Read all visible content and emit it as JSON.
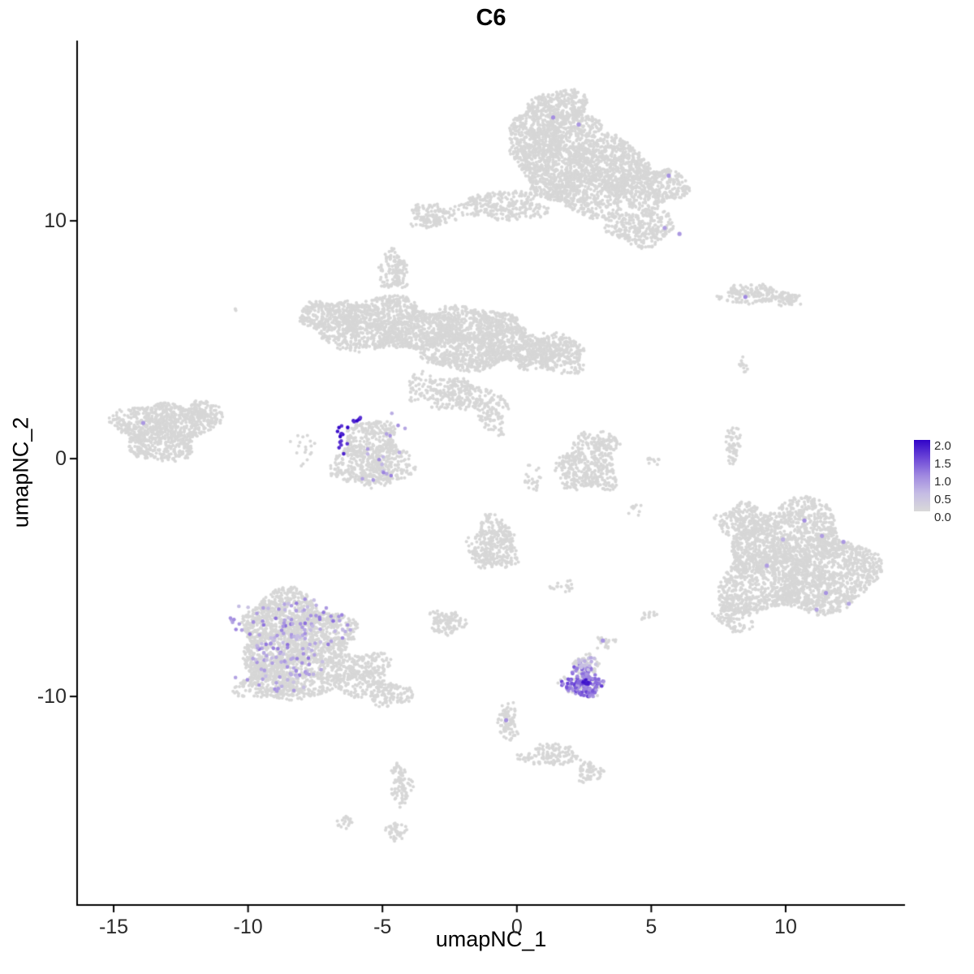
{
  "chart_data": {
    "type": "scatter",
    "title": "C6",
    "xlabel": "umapNC_1",
    "ylabel": "umapNC_2",
    "xlim": [
      -16.36,
      14.44
    ],
    "ylim": [
      -18.77,
      17.58
    ],
    "grid": false,
    "legend_position": "right",
    "x_ticks": [
      {
        "v": -15,
        "label": "-15"
      },
      {
        "v": -10,
        "label": "-10"
      },
      {
        "v": -5,
        "label": "-5"
      },
      {
        "v": 0,
        "label": "0"
      },
      {
        "v": 5,
        "label": "5"
      },
      {
        "v": 10,
        "label": "10"
      }
    ],
    "y_ticks": [
      {
        "v": 10,
        "label": "10"
      },
      {
        "v": 0,
        "label": "0"
      },
      {
        "v": -10,
        "label": "-10"
      }
    ],
    "legend": {
      "ticks": [
        "2.0",
        "1.5",
        "1.0",
        "0.5",
        "0.0"
      ],
      "vmin": 0.0,
      "vmax": 2.0
    },
    "colors": {
      "base_point": "#d7d7d7",
      "axis": "#000000",
      "tick_text": "#2b2b2b"
    },
    "color_stops": [
      {
        "v": 0.0,
        "c": "#d9d9d9"
      },
      {
        "v": 0.5,
        "c": "#c5bce4"
      },
      {
        "v": 1.0,
        "c": "#a089e0"
      },
      {
        "v": 1.5,
        "c": "#6b45d7"
      },
      {
        "v": 2.0,
        "c": "#3104c8"
      }
    ],
    "gray_clusters": [
      {
        "cx": 1.5,
        "cy": 14.3,
        "rx": 1.5,
        "ry": 1.1,
        "n": 700
      },
      {
        "cx": 2.5,
        "cy": 12.0,
        "rx": 2.3,
        "ry": 1.6,
        "n": 1600
      },
      {
        "cx": 0.7,
        "cy": 13.1,
        "rx": 1.0,
        "ry": 1.0,
        "n": 300
      },
      {
        "cx": 4.9,
        "cy": 11.4,
        "rx": 1.4,
        "ry": 0.9,
        "n": 450
      },
      {
        "cx": 4.6,
        "cy": 9.7,
        "rx": 1.3,
        "ry": 0.7,
        "n": 300
      },
      {
        "cx": -0.6,
        "cy": 10.6,
        "rx": 1.7,
        "ry": 0.6,
        "n": 280
      },
      {
        "cx": -3.2,
        "cy": 10.2,
        "rx": 0.8,
        "ry": 0.5,
        "n": 130
      },
      {
        "cx": -4.6,
        "cy": 5.6,
        "rx": 2.2,
        "ry": 1.1,
        "n": 1100
      },
      {
        "cx": -1.4,
        "cy": 5.0,
        "rx": 2.2,
        "ry": 1.3,
        "n": 1300
      },
      {
        "cx": 1.2,
        "cy": 4.4,
        "rx": 1.4,
        "ry": 0.8,
        "n": 420
      },
      {
        "cx": -6.9,
        "cy": 5.9,
        "rx": 1.1,
        "ry": 0.8,
        "n": 350
      },
      {
        "cx": -4.6,
        "cy": 7.9,
        "rx": 0.55,
        "ry": 0.8,
        "n": 140
      },
      {
        "cx": -2.2,
        "cy": 2.7,
        "rx": 1.1,
        "ry": 0.7,
        "n": 220
      },
      {
        "cx": -0.9,
        "cy": 1.9,
        "rx": 0.6,
        "ry": 0.8,
        "n": 110
      },
      {
        "cx": -13.2,
        "cy": 1.2,
        "rx": 1.7,
        "ry": 1.2,
        "n": 900
      },
      {
        "cx": -11.7,
        "cy": 1.9,
        "rx": 0.8,
        "ry": 0.5,
        "n": 130
      },
      {
        "cx": -5.4,
        "cy": 0.1,
        "rx": 1.4,
        "ry": 1.4,
        "n": 650
      },
      {
        "cx": -8.0,
        "cy": 0.4,
        "rx": 0.5,
        "ry": 0.8,
        "n": 18
      },
      {
        "cx": 2.6,
        "cy": -0.3,
        "rx": 1.1,
        "ry": 1.1,
        "n": 380
      },
      {
        "cx": 3.3,
        "cy": 0.7,
        "rx": 0.5,
        "ry": 0.4,
        "n": 70
      },
      {
        "cx": 10.4,
        "cy": -4.4,
        "rx": 2.8,
        "ry": 2.3,
        "n": 2600
      },
      {
        "cx": 8.4,
        "cy": -2.6,
        "rx": 0.9,
        "ry": 0.7,
        "n": 200
      },
      {
        "cx": 8.1,
        "cy": -6.5,
        "rx": 0.7,
        "ry": 0.8,
        "n": 150
      },
      {
        "cx": -8.3,
        "cy": -7.3,
        "rx": 2.1,
        "ry": 1.6,
        "n": 1500
      },
      {
        "cx": -8.6,
        "cy": -9.3,
        "rx": 1.8,
        "ry": 0.9,
        "n": 600
      },
      {
        "cx": -6.0,
        "cy": -9.0,
        "rx": 1.3,
        "ry": 0.9,
        "n": 350
      },
      {
        "cx": -4.7,
        "cy": -9.9,
        "rx": 0.8,
        "ry": 0.5,
        "n": 120
      },
      {
        "cx": -0.9,
        "cy": -3.6,
        "rx": 0.9,
        "ry": 1.1,
        "n": 330
      },
      {
        "cx": -2.6,
        "cy": -6.9,
        "rx": 0.65,
        "ry": 0.5,
        "n": 110
      },
      {
        "cx": 2.6,
        "cy": -8.7,
        "rx": 0.5,
        "ry": 0.45,
        "n": 80
      },
      {
        "cx": -0.35,
        "cy": -11.1,
        "rx": 0.35,
        "ry": 0.8,
        "n": 90
      },
      {
        "cx": 1.3,
        "cy": -12.5,
        "rx": 1.1,
        "ry": 0.45,
        "n": 130
      },
      {
        "cx": 2.7,
        "cy": -13.2,
        "rx": 0.5,
        "ry": 0.4,
        "n": 60
      },
      {
        "cx": -4.3,
        "cy": -13.7,
        "rx": 0.4,
        "ry": 0.9,
        "n": 90
      },
      {
        "cx": -4.5,
        "cy": -15.7,
        "rx": 0.35,
        "ry": 0.4,
        "n": 40
      },
      {
        "cx": -6.4,
        "cy": -15.3,
        "rx": 0.3,
        "ry": 0.25,
        "n": 20
      },
      {
        "cx": 8.8,
        "cy": 6.9,
        "rx": 1.3,
        "ry": 0.4,
        "n": 170
      },
      {
        "cx": 10.1,
        "cy": 6.7,
        "rx": 0.5,
        "ry": 0.3,
        "n": 50
      },
      {
        "cx": 8.0,
        "cy": 0.6,
        "rx": 0.3,
        "ry": 0.9,
        "n": 60
      },
      {
        "cx": 8.45,
        "cy": 3.9,
        "rx": 0.2,
        "ry": 0.4,
        "n": 12
      },
      {
        "cx": 4.9,
        "cy": -6.6,
        "rx": 0.3,
        "ry": 0.25,
        "n": 14
      },
      {
        "cx": 3.3,
        "cy": -7.7,
        "rx": 0.35,
        "ry": 0.3,
        "n": 22
      },
      {
        "cx": 1.7,
        "cy": -5.4,
        "rx": 0.45,
        "ry": 0.3,
        "n": 18
      },
      {
        "cx": 4.4,
        "cy": -2.2,
        "rx": 0.3,
        "ry": 0.3,
        "n": 10
      },
      {
        "cx": 5.1,
        "cy": -0.1,
        "rx": 0.3,
        "ry": 0.25,
        "n": 10
      },
      {
        "cx": 0.6,
        "cy": -0.9,
        "rx": 0.3,
        "ry": 0.7,
        "n": 25
      },
      {
        "cx": -3.5,
        "cy": 3.0,
        "rx": 0.6,
        "ry": 0.6,
        "n": 60
      },
      {
        "cx": -10.4,
        "cy": 6.3,
        "rx": 0.15,
        "ry": 0.15,
        "n": 3
      },
      {
        "cx": 2.45,
        "cy": -9.5,
        "rx": 0.8,
        "ry": 0.5,
        "n": 60
      }
    ],
    "expression_regions": [
      {
        "cx": -8.4,
        "cy": -7.4,
        "rx": 2.0,
        "ry": 1.6,
        "n": 130,
        "vmin": 0.4,
        "vmax": 1.2
      },
      {
        "cx": -8.7,
        "cy": -9.2,
        "rx": 1.6,
        "ry": 0.8,
        "n": 30,
        "vmin": 0.4,
        "vmax": 1.0
      },
      {
        "cx": 2.45,
        "cy": -9.55,
        "rx": 0.75,
        "ry": 0.4,
        "n": 110,
        "vmin": 0.8,
        "vmax": 1.6
      },
      {
        "cx": 2.5,
        "cy": -9.0,
        "rx": 0.45,
        "ry": 0.35,
        "n": 45,
        "vmin": 0.7,
        "vmax": 1.4
      },
      {
        "cx": 2.6,
        "cy": -9.4,
        "rx": 0.25,
        "ry": 0.15,
        "n": 5,
        "vmin": 1.8,
        "vmax": 2.0
      },
      {
        "cx": 2.6,
        "cy": -8.6,
        "rx": 0.4,
        "ry": 0.3,
        "n": 18,
        "vmin": 0.3,
        "vmax": 0.7
      },
      {
        "cx": -6.45,
        "cy": 0.9,
        "rx": 0.22,
        "ry": 0.8,
        "n": 14,
        "vmin": 1.5,
        "vmax": 2.0
      },
      {
        "cx": -5.9,
        "cy": 1.6,
        "rx": 0.3,
        "ry": 0.15,
        "n": 6,
        "vmin": 1.6,
        "vmax": 2.0
      },
      {
        "cx": -5.1,
        "cy": -0.2,
        "rx": 1.0,
        "ry": 1.0,
        "n": 12,
        "vmin": 0.5,
        "vmax": 1.1
      },
      {
        "cx": -4.5,
        "cy": 1.5,
        "rx": 0.6,
        "ry": 0.8,
        "n": 5,
        "vmin": 0.6,
        "vmax": 1.0
      }
    ],
    "expression_points": [
      [
        1.35,
        14.35,
        0.95
      ],
      [
        2.3,
        14.05,
        0.85
      ],
      [
        5.65,
        11.9,
        0.9
      ],
      [
        5.5,
        9.7,
        0.8
      ],
      [
        6.05,
        9.45,
        0.85
      ],
      [
        8.5,
        6.8,
        1.0
      ],
      [
        -13.9,
        1.5,
        0.85
      ],
      [
        -0.4,
        -11.0,
        0.95
      ],
      [
        3.2,
        -7.65,
        0.9
      ],
      [
        10.7,
        -2.6,
        0.95
      ],
      [
        11.35,
        -3.25,
        0.8
      ],
      [
        12.15,
        -3.5,
        0.85
      ],
      [
        9.3,
        -4.5,
        0.8
      ],
      [
        11.5,
        -5.65,
        0.9
      ],
      [
        11.15,
        -6.35,
        0.75
      ],
      [
        12.35,
        -6.1,
        0.7
      ],
      [
        9.9,
        -3.4,
        0.6
      ]
    ]
  }
}
